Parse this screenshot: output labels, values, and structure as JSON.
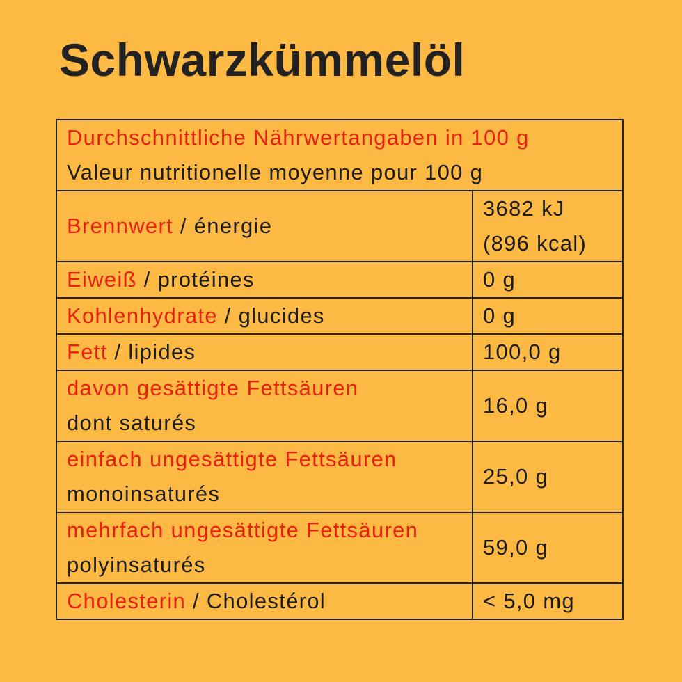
{
  "title": "Schwarzkümmelöl",
  "table": {
    "header": {
      "de": "Durchschnittliche Nährwertangaben in 100 g",
      "fr": "Valeur nutritionelle moyenne pour 100 g"
    },
    "rows": [
      {
        "de": "Brennwert",
        "fr": "/ énergie",
        "value": "3682 kJ",
        "value_line2": "(896 kcal)"
      },
      {
        "de": "Eiweiß",
        "fr": "/ protéines",
        "value": "0 g"
      },
      {
        "de": "Kohlenhydrate",
        "fr": "/ glucides",
        "value": "0 g"
      },
      {
        "de": "Fett",
        "fr": "/ lipides",
        "value": "100,0 g"
      },
      {
        "de": "davon gesättigte Fettsäuren",
        "fr": "dont saturés",
        "value": "16,0 g"
      },
      {
        "de": "einfach ungesättigte Fettsäuren",
        "fr": "monoinsaturés",
        "value": "25,0 g"
      },
      {
        "de": "mehrfach ungesättigte Fettsäuren",
        "fr": "polyinsaturés",
        "value": "59,0 g"
      },
      {
        "de": "Cholesterin",
        "fr": "/ Cholestérol",
        "value": "< 5,0 mg"
      }
    ]
  }
}
